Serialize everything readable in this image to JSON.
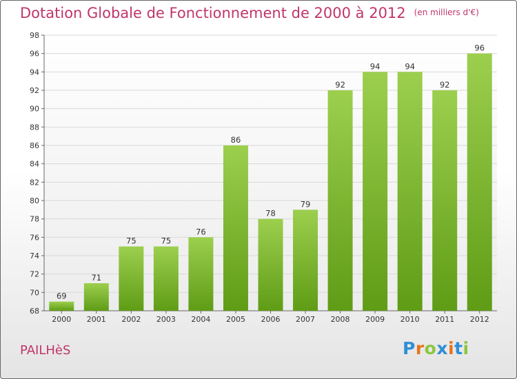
{
  "header": {
    "title": "Dotation Globale de Fonctionnement de 2000 à 2012",
    "unit": "(en milliers d'€)"
  },
  "commune": "PAILHèS",
  "logo": {
    "letters": [
      "P",
      "r",
      "o",
      "x",
      "i",
      "t",
      "i"
    ],
    "colors": [
      "#2f8fd6",
      "#e8731a",
      "#8cc63f",
      "#2f8fd6",
      "#e8731a",
      "#2f8fd6",
      "#8cc63f"
    ]
  },
  "chart_data": {
    "type": "bar",
    "title": "Dotation Globale de Fonctionnement de 2000 à 2012",
    "subtitle": "(en milliers d'€)",
    "categories": [
      "2000",
      "2001",
      "2002",
      "2003",
      "2004",
      "2005",
      "2006",
      "2007",
      "2008",
      "2009",
      "2010",
      "2011",
      "2012"
    ],
    "values": [
      69,
      71,
      75,
      75,
      76,
      86,
      78,
      79,
      92,
      94,
      94,
      92,
      96
    ],
    "xlabel": "",
    "ylabel": "",
    "ylim": [
      68,
      98
    ],
    "yticks": [
      68,
      70,
      72,
      74,
      76,
      78,
      80,
      82,
      84,
      86,
      88,
      90,
      92,
      94,
      96,
      98
    ],
    "grid": "horizontal",
    "bar_color_top": "#9ccf4e",
    "bar_color_bottom": "#5f9c16"
  }
}
